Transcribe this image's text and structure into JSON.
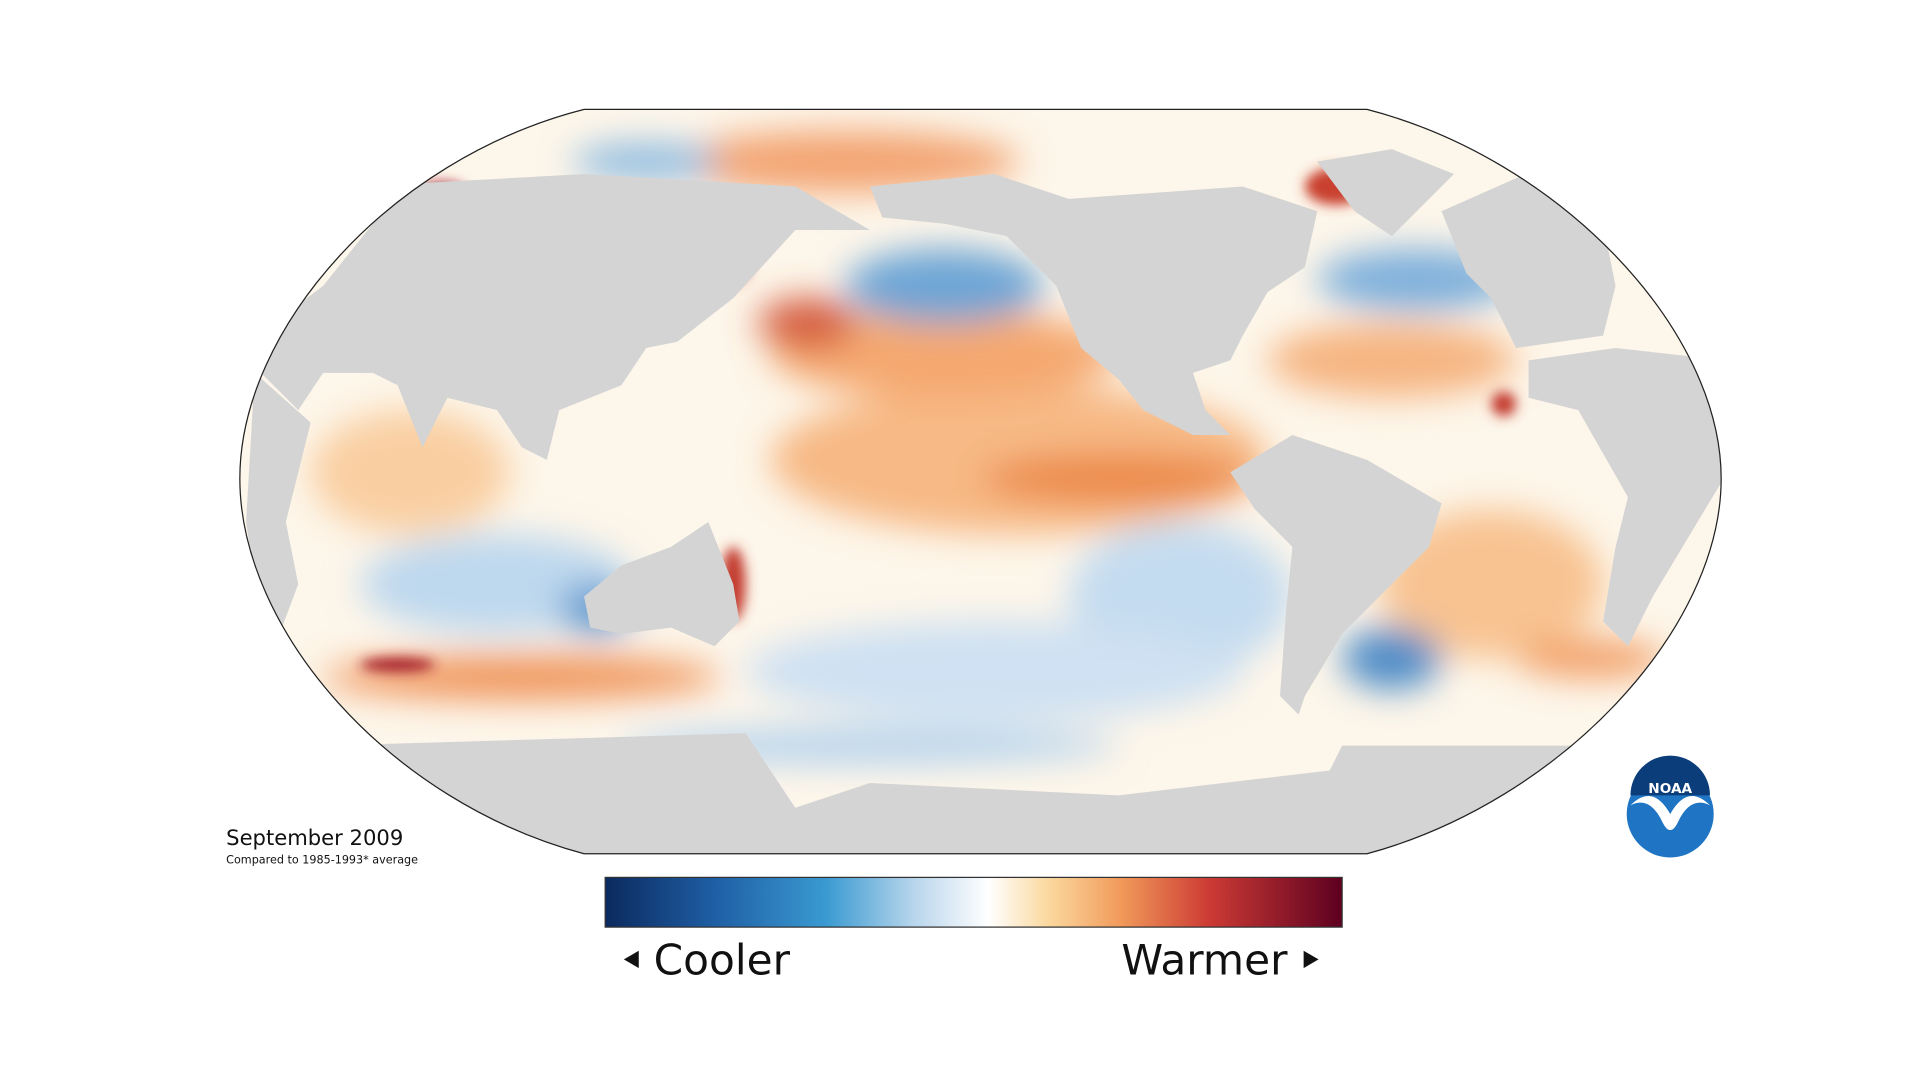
{
  "map": {
    "date": "September 2009",
    "baseline": "Compared to 1985-1993* average",
    "legend": {
      "low": "Cooler",
      "high": "Warmer"
    }
  },
  "logo": {
    "text": "NOAA"
  }
}
